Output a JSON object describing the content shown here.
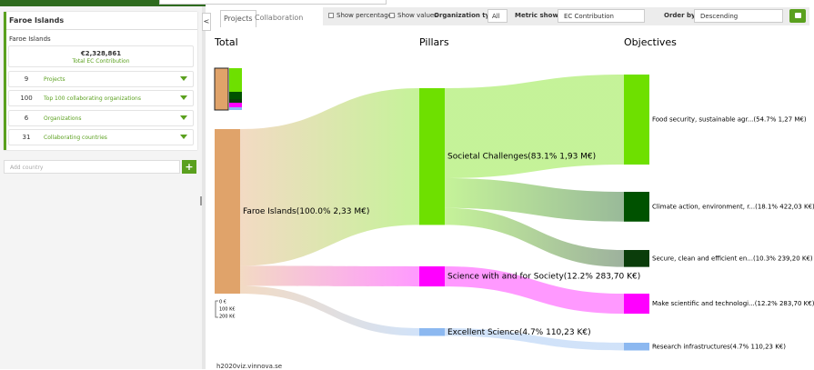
{
  "sidebar": {
    "title": "Faroe Islands",
    "subtitle": "Faroe Islands",
    "total": "€2,328,861",
    "total_label": "Total EC Contribution",
    "stats": [
      {
        "value": "9",
        "label": "Projects"
      },
      {
        "value": "100",
        "label": "Top 100 collaborating organizations"
      },
      {
        "value": "6",
        "label": "Organizations"
      },
      {
        "value": "31",
        "label": "Collaborating countries"
      }
    ],
    "add_country": "Add country"
  },
  "tabs": [
    "Projects",
    "Collaboration"
  ],
  "toolbar": {
    "show_percentages": "Show percentages",
    "show_values": "Show values",
    "org_type_label": "Organization type:",
    "org_type_value": "All",
    "metric_label": "Metric shown:",
    "metric_value": "EC Contribution",
    "order_label": "Order by:",
    "order_value": "Descending"
  },
  "sankey": {
    "columns": [
      "Total",
      "Pillars",
      "Objectives"
    ],
    "total": {
      "label": "Faroe Islands(100.0% 2,33 M€)",
      "share": 100.0,
      "color": "#e0a36a"
    },
    "pillars": [
      {
        "label": "Societal Challenges(83.1% 1,93 M€)",
        "share": 83.1,
        "color": "#6ee000",
        "objectives": [
          {
            "label": "Food security, sustainable agr...(54.7% 1,27 M€)",
            "share": 54.7,
            "color": "#6ee000"
          },
          {
            "label": "Climate action, environment, r...(18.1% 422,03 K€)",
            "share": 18.1,
            "color": "#005200"
          },
          {
            "label": "Secure, clean and efficient en...(10.3% 239,20 K€)",
            "share": 10.3,
            "color": "#0b3d0b"
          }
        ]
      },
      {
        "label": "Science with and for Society(12.2% 283,70 K€)",
        "share": 12.2,
        "color": "#ff00ff",
        "objectives": [
          {
            "label": "Make scientific and technologi...(12.2% 283,70 K€)",
            "share": 12.2,
            "color": "#ff00ff"
          }
        ]
      },
      {
        "label": "Excellent Science(4.7% 110,23 K€)",
        "share": 4.7,
        "color": "#8cb8f0",
        "objectives": [
          {
            "label": "Research infrastructures(4.7% 110,23 K€)",
            "share": 4.7,
            "color": "#8cb8f0"
          }
        ]
      }
    ],
    "legend": [
      "0 €",
      "100 K€",
      "200 K€"
    ]
  },
  "footer": "h2020viz.vinnova.se"
}
